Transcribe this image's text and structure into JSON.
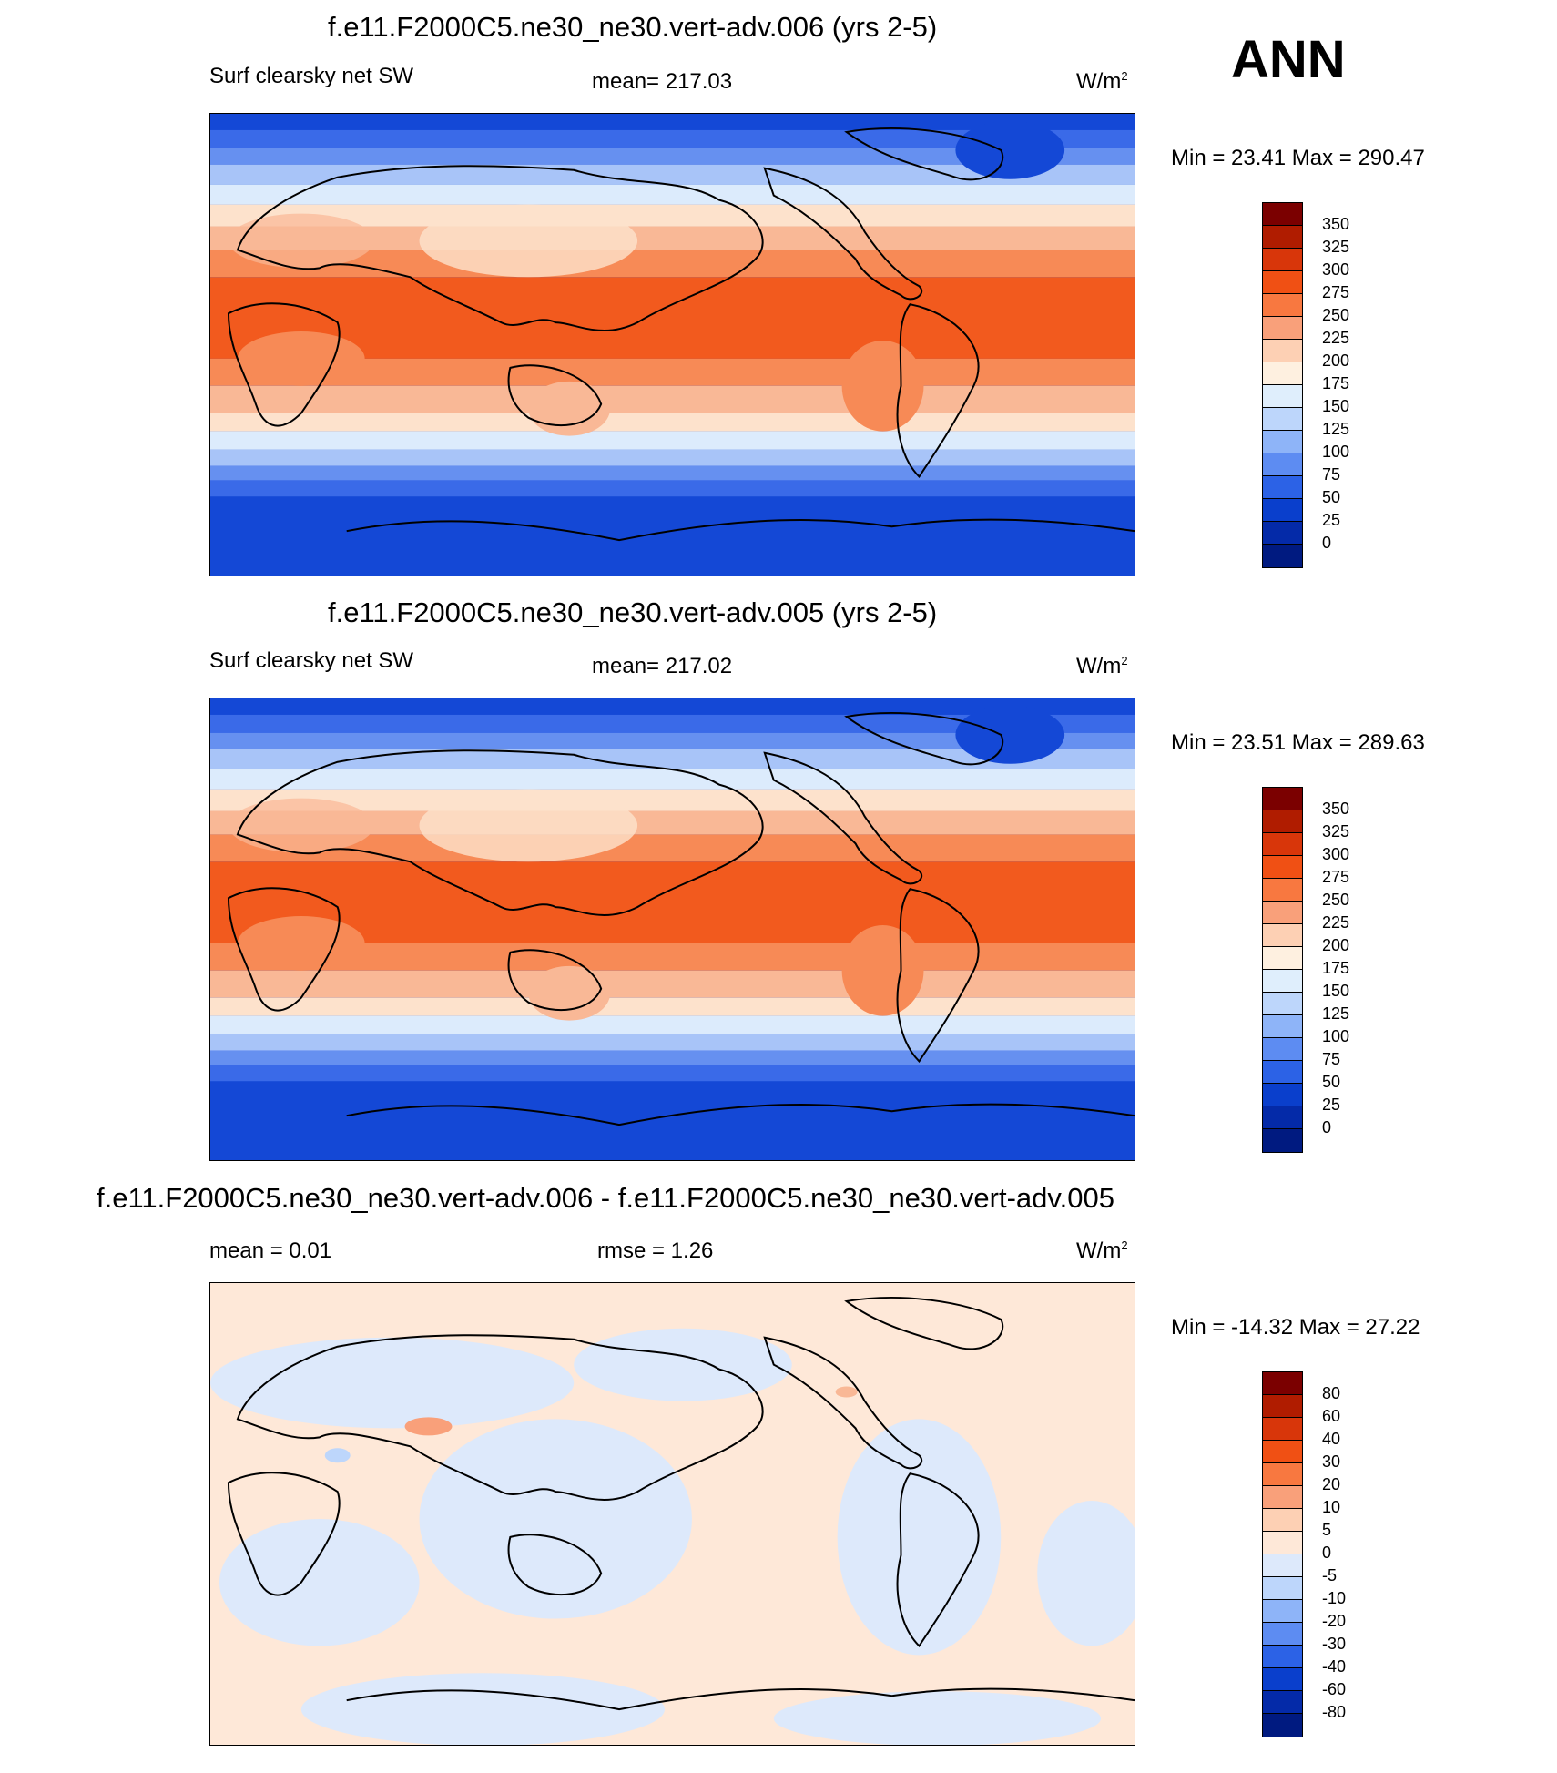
{
  "season": "ANN",
  "panels": [
    {
      "title": "f.e11.F2000C5.ne30_ne30.vert-adv.006 (yrs 2-5)",
      "left_label": "Surf clearsky net SW",
      "center_label": "mean= 217.03",
      "units": "W/m",
      "units_exp": "2",
      "minmax": "Min =  23.41 Max = 290.47",
      "colorbar": {
        "labels": [
          "350",
          "325",
          "300",
          "275",
          "250",
          "225",
          "200",
          "175",
          "150",
          "125",
          "100",
          "75",
          "50",
          "25",
          "0"
        ],
        "colors": [
          "#7b0000",
          "#b01c00",
          "#d8360a",
          "#f05014",
          "#f87840",
          "#f9a07a",
          "#fdd0b4",
          "#fef0e0",
          "#dfeefc",
          "#bdd6fb",
          "#8eb4f8",
          "#5d8cf2",
          "#2c62e6",
          "#0a3fcc",
          "#042aa8",
          "#001a80"
        ]
      }
    },
    {
      "title": "f.e11.F2000C5.ne30_ne30.vert-adv.005 (yrs 2-5)",
      "left_label": "Surf clearsky net SW",
      "center_label": "mean= 217.02",
      "units": "W/m",
      "units_exp": "2",
      "minmax": "Min =  23.51 Max = 289.63",
      "colorbar": {
        "labels": [
          "350",
          "325",
          "300",
          "275",
          "250",
          "225",
          "200",
          "175",
          "150",
          "125",
          "100",
          "75",
          "50",
          "25",
          "0"
        ],
        "colors": [
          "#7b0000",
          "#b01c00",
          "#d8360a",
          "#f05014",
          "#f87840",
          "#f9a07a",
          "#fdd0b4",
          "#fef0e0",
          "#dfeefc",
          "#bdd6fb",
          "#8eb4f8",
          "#5d8cf2",
          "#2c62e6",
          "#0a3fcc",
          "#042aa8",
          "#001a80"
        ]
      }
    },
    {
      "title": "f.e11.F2000C5.ne30_ne30.vert-adv.006 - f.e11.F2000C5.ne30_ne30.vert-adv.005",
      "left_label": "mean =   0.01",
      "center_label": "rmse =   1.26",
      "units": "W/m",
      "units_exp": "2",
      "minmax": "Min = -14.32 Max =  27.22",
      "colorbar": {
        "labels": [
          "80",
          "60",
          "40",
          "30",
          "20",
          "10",
          "5",
          "0",
          "-5",
          "-10",
          "-20",
          "-30",
          "-40",
          "-60",
          "-80"
        ],
        "colors": [
          "#7b0000",
          "#b01c00",
          "#d8360a",
          "#f05014",
          "#f87840",
          "#f9a07a",
          "#fdd0b4",
          "#fee8d8",
          "#dde9fb",
          "#bdd6fb",
          "#8eb4f8",
          "#5d8cf2",
          "#2c62e6",
          "#0a3fcc",
          "#042aa8",
          "#001a80"
        ]
      }
    }
  ]
}
